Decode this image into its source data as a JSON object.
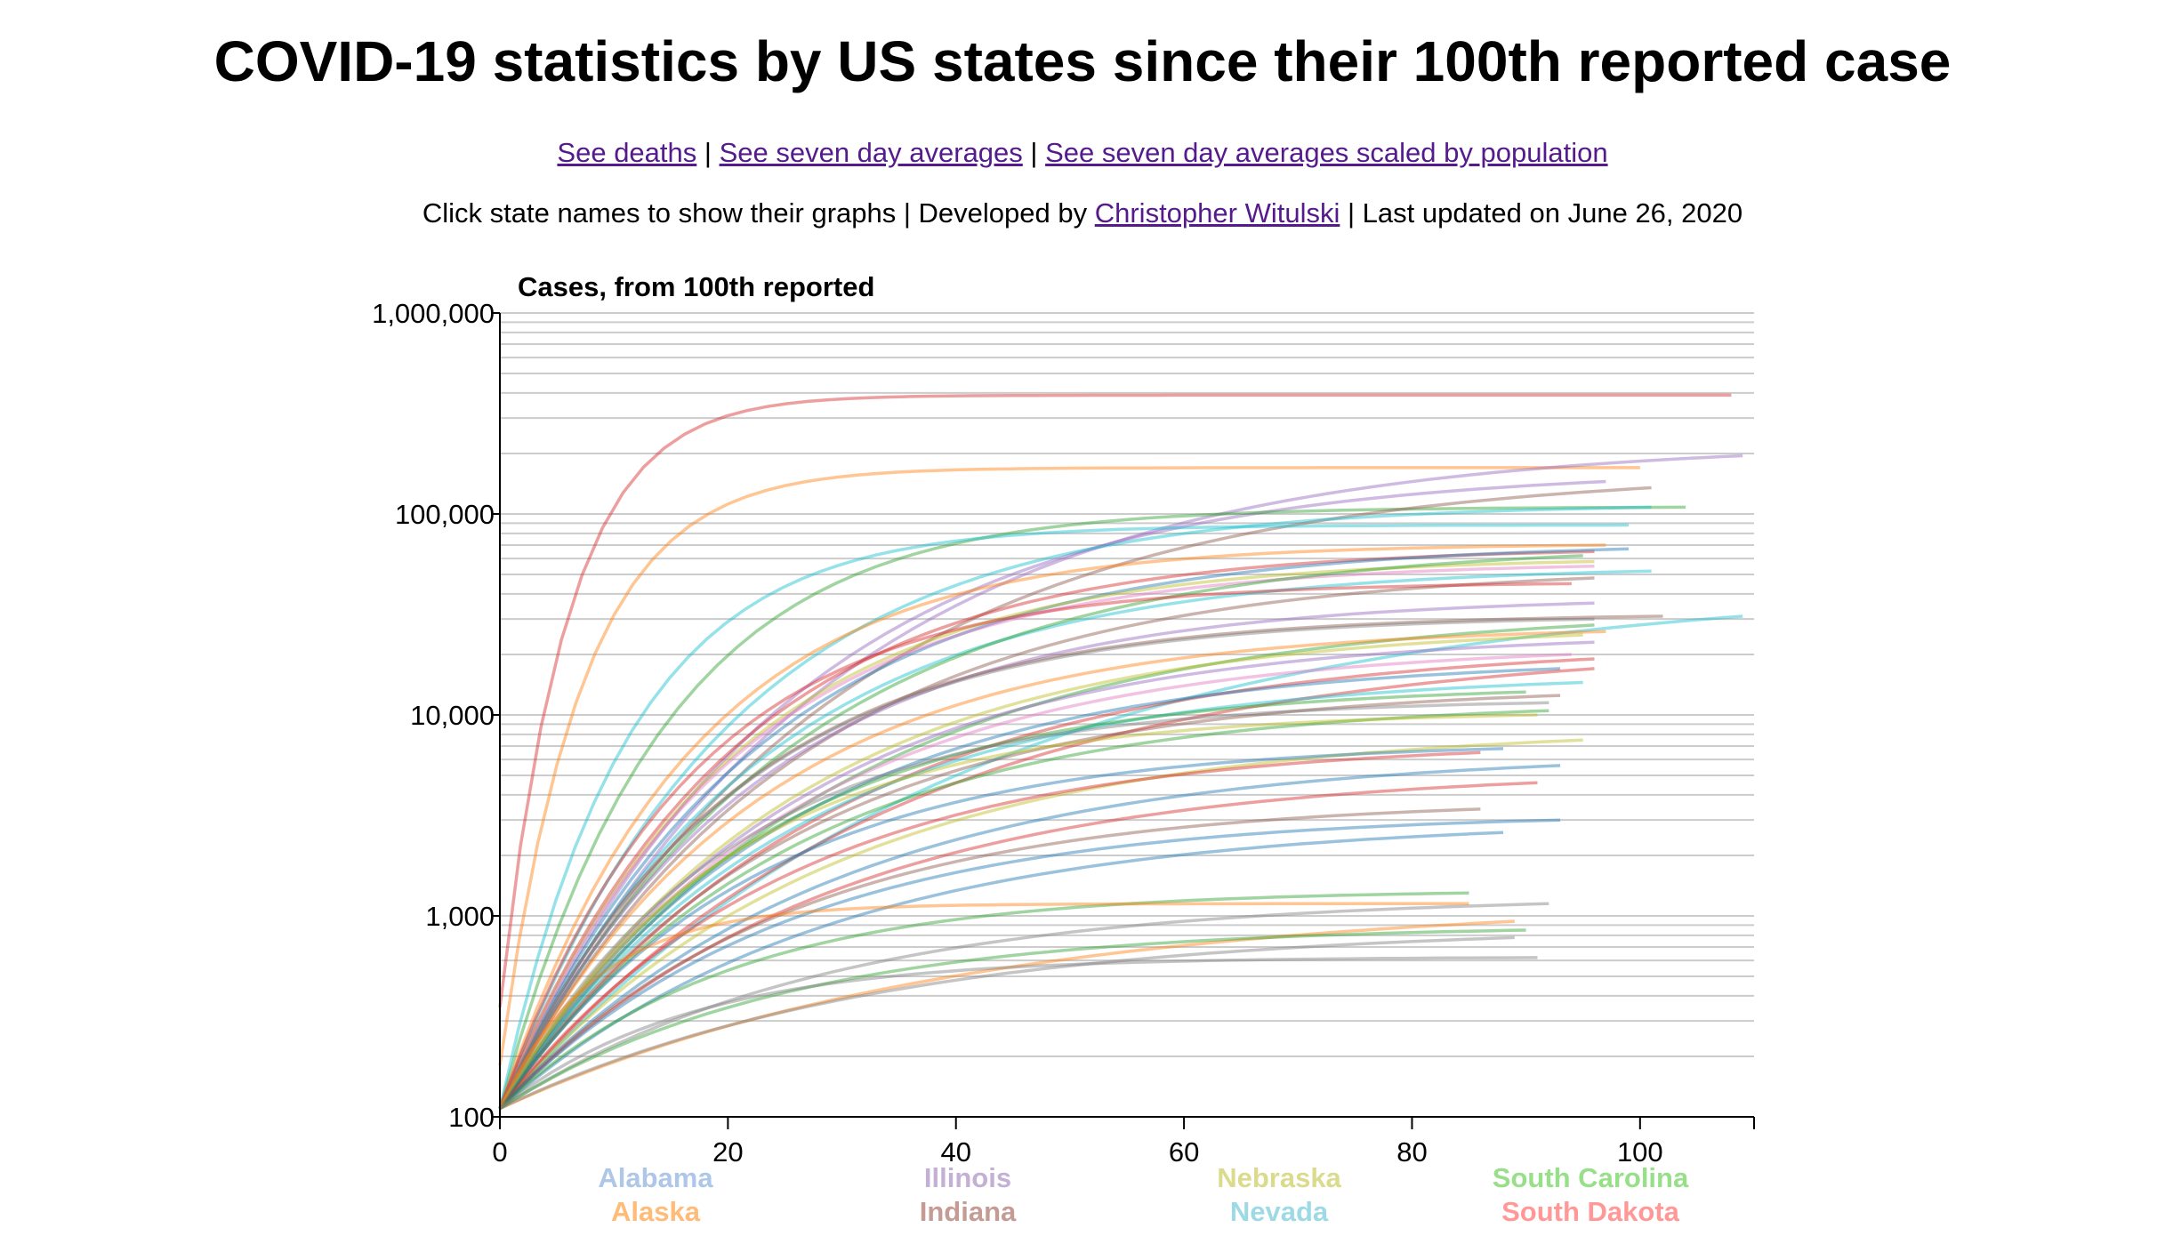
{
  "page": {
    "title": "COVID-19 statistics by US states since their 100th reported case",
    "links": [
      {
        "label": "See deaths"
      },
      {
        "label": "See seven day averages"
      },
      {
        "label": "See seven day averages scaled by population"
      }
    ],
    "separator": " | ",
    "info": {
      "prefix": "Click state names to show their graphs | Developed by ",
      "author": "Christopher Witulski",
      "suffix": " | Last updated on June 26, 2020"
    }
  },
  "chart_data": {
    "type": "line",
    "title": "Cases, from 100th reported",
    "xlabel": "",
    "ylabel": "",
    "y_scale": "log",
    "xlim": [
      0,
      110
    ],
    "ylim": [
      100,
      1000000
    ],
    "x_ticks": [
      0,
      20,
      40,
      60,
      80,
      100
    ],
    "x_tick_labels": [
      "0",
      "20",
      "40",
      "60",
      "80",
      "100"
    ],
    "y_ticks": [
      100,
      1000,
      10000,
      100000,
      1000000
    ],
    "y_tick_labels": [
      "100",
      "1,000",
      "10,000",
      "100,000",
      "1,000,000"
    ],
    "grid": "horizontal",
    "legend_placement": "bottom",
    "legend": [
      {
        "name": "Alabama",
        "color": "#aec7e8"
      },
      {
        "name": "Alaska",
        "color": "#ffbb78"
      },
      {
        "name": "Illinois",
        "color": "#c5b0d5"
      },
      {
        "name": "Indiana",
        "color": "#c49c94"
      },
      {
        "name": "Nebraska",
        "color": "#dbdb8d"
      },
      {
        "name": "Nevada",
        "color": "#9edae5"
      },
      {
        "name": "South Carolina",
        "color": "#98df8a"
      },
      {
        "name": "South Dakota",
        "color": "#ff9896"
      }
    ],
    "series": [
      {
        "end_x": 108,
        "end_y": 390000,
        "color": "#d62728",
        "k": 0.17,
        "x0": 0,
        "y0": 350
      },
      {
        "end_x": 100,
        "end_y": 170000,
        "color": "#ff7f0e",
        "k": 0.14,
        "x0": 0,
        "y0": 180
      },
      {
        "end_x": 109,
        "end_y": 195000,
        "color": "#9467bd",
        "k": 0.035,
        "x0": 0,
        "y0": 110
      },
      {
        "end_x": 97,
        "end_y": 145000,
        "color": "#9467bd",
        "k": 0.04,
        "x0": 0,
        "y0": 110
      },
      {
        "end_x": 104,
        "end_y": 108000,
        "color": "#2ca02c",
        "k": 0.07,
        "x0": 0,
        "y0": 110
      },
      {
        "end_x": 101,
        "end_y": 135000,
        "color": "#8c564b",
        "k": 0.035,
        "x0": 0,
        "y0": 110
      },
      {
        "end_x": 101,
        "end_y": 108000,
        "color": "#17becf",
        "k": 0.05,
        "x0": 0,
        "y0": 110
      },
      {
        "end_x": 99,
        "end_y": 88000,
        "color": "#17becf",
        "k": 0.09,
        "x0": 0,
        "y0": 110
      },
      {
        "end_x": 97,
        "end_y": 70000,
        "color": "#ff7f0e",
        "k": 0.06,
        "x0": 0,
        "y0": 110
      },
      {
        "end_x": 96,
        "end_y": 65000,
        "color": "#d62728",
        "k": 0.05,
        "x0": 0,
        "y0": 110
      },
      {
        "end_x": 99,
        "end_y": 67000,
        "color": "#1f77b4",
        "k": 0.045,
        "x0": 0,
        "y0": 110
      },
      {
        "end_x": 96,
        "end_y": 58000,
        "color": "#bcbd22",
        "k": 0.05,
        "x0": 0,
        "y0": 110
      },
      {
        "end_x": 101,
        "end_y": 52000,
        "color": "#17becf",
        "k": 0.045,
        "x0": 0,
        "y0": 110
      },
      {
        "end_x": 96,
        "end_y": 55000,
        "color": "#e377c2",
        "k": 0.05,
        "x0": 0,
        "y0": 110
      },
      {
        "end_x": 95,
        "end_y": 62000,
        "color": "#2ca02c",
        "k": 0.04,
        "x0": 0,
        "y0": 110
      },
      {
        "end_x": 96,
        "end_y": 48000,
        "color": "#8c564b",
        "k": 0.04,
        "x0": 0,
        "y0": 110
      },
      {
        "end_x": 94,
        "end_y": 45000,
        "color": "#d62728",
        "k": 0.06,
        "x0": 0,
        "y0": 110
      },
      {
        "end_x": 96,
        "end_y": 36000,
        "color": "#9467bd",
        "k": 0.045,
        "x0": 0,
        "y0": 110
      },
      {
        "end_x": 102,
        "end_y": 31000,
        "color": "#8c564b",
        "k": 0.05,
        "x0": 0,
        "y0": 110
      },
      {
        "end_x": 109,
        "end_y": 31000,
        "color": "#17becf",
        "k": 0.025,
        "x0": 0,
        "y0": 110
      },
      {
        "end_x": 96,
        "end_y": 30000,
        "color": "#7f7f7f",
        "k": 0.05,
        "x0": 0,
        "y0": 110
      },
      {
        "end_x": 96,
        "end_y": 28000,
        "color": "#2ca02c",
        "k": 0.035,
        "x0": 0,
        "y0": 110
      },
      {
        "end_x": 97,
        "end_y": 26000,
        "color": "#ff7f0e",
        "k": 0.045,
        "x0": 0,
        "y0": 110
      },
      {
        "end_x": 95,
        "end_y": 25000,
        "color": "#bcbd22",
        "k": 0.04,
        "x0": 0,
        "y0": 110
      },
      {
        "end_x": 96,
        "end_y": 23000,
        "color": "#9467bd",
        "k": 0.04,
        "x0": 0,
        "y0": 110
      },
      {
        "end_x": 94,
        "end_y": 20000,
        "color": "#e377c2",
        "k": 0.04,
        "x0": 0,
        "y0": 110
      },
      {
        "end_x": 96,
        "end_y": 19000,
        "color": "#d62728",
        "k": 0.035,
        "x0": 0,
        "y0": 110
      },
      {
        "end_x": 93,
        "end_y": 17000,
        "color": "#1f77b4",
        "k": 0.04,
        "x0": 0,
        "y0": 110
      },
      {
        "end_x": 96,
        "end_y": 17000,
        "color": "#d62728",
        "k": 0.03,
        "x0": 0,
        "y0": 110
      },
      {
        "end_x": 95,
        "end_y": 14500,
        "color": "#17becf",
        "k": 0.04,
        "x0": 0,
        "y0": 110
      },
      {
        "end_x": 90,
        "end_y": 13000,
        "color": "#2ca02c",
        "k": 0.045,
        "x0": 0,
        "y0": 110
      },
      {
        "end_x": 93,
        "end_y": 12500,
        "color": "#8c564b",
        "k": 0.04,
        "x0": 0,
        "y0": 110
      },
      {
        "end_x": 92,
        "end_y": 11500,
        "color": "#7f7f7f",
        "k": 0.05,
        "x0": 0,
        "y0": 110
      },
      {
        "end_x": 92,
        "end_y": 10500,
        "color": "#2ca02c",
        "k": 0.04,
        "x0": 0,
        "y0": 110
      },
      {
        "end_x": 91,
        "end_y": 10000,
        "color": "#bcbd22",
        "k": 0.05,
        "x0": 0,
        "y0": 110
      },
      {
        "end_x": 95,
        "end_y": 7500,
        "color": "#bcbd22",
        "k": 0.035,
        "x0": 0,
        "y0": 110
      },
      {
        "end_x": 88,
        "end_y": 6800,
        "color": "#1f77b4",
        "k": 0.045,
        "x0": 0,
        "y0": 110
      },
      {
        "end_x": 86,
        "end_y": 6500,
        "color": "#d62728",
        "k": 0.04,
        "x0": 0,
        "y0": 110
      },
      {
        "end_x": 93,
        "end_y": 5600,
        "color": "#1f77b4",
        "k": 0.035,
        "x0": 0,
        "y0": 110
      },
      {
        "end_x": 91,
        "end_y": 4600,
        "color": "#d62728",
        "k": 0.035,
        "x0": 0,
        "y0": 110
      },
      {
        "end_x": 86,
        "end_y": 3400,
        "color": "#8c564b",
        "k": 0.04,
        "x0": 0,
        "y0": 110
      },
      {
        "end_x": 93,
        "end_y": 3000,
        "color": "#1f77b4",
        "k": 0.04,
        "x0": 0,
        "y0": 110
      },
      {
        "end_x": 88,
        "end_y": 2600,
        "color": "#1f77b4",
        "k": 0.035,
        "x0": 0,
        "y0": 110
      },
      {
        "end_x": 85,
        "end_y": 1300,
        "color": "#2ca02c",
        "k": 0.05,
        "x0": 0,
        "y0": 110
      },
      {
        "end_x": 92,
        "end_y": 1150,
        "color": "#7f7f7f",
        "k": 0.035,
        "x0": 0,
        "y0": 110
      },
      {
        "end_x": 85,
        "end_y": 1150,
        "color": "#ff7f0e",
        "k": 0.12,
        "x0": 0,
        "y0": 110
      },
      {
        "end_x": 89,
        "end_y": 940,
        "color": "#ff7f0e",
        "k": 0.025,
        "x0": 0,
        "y0": 110
      },
      {
        "end_x": 90,
        "end_y": 850,
        "color": "#2ca02c",
        "k": 0.04,
        "x0": 0,
        "y0": 110
      },
      {
        "end_x": 89,
        "end_y": 780,
        "color": "#7f7f7f",
        "k": 0.03,
        "x0": 0,
        "y0": 110
      },
      {
        "end_x": 91,
        "end_y": 620,
        "color": "#7f7f7f",
        "k": 0.06,
        "x0": 0,
        "y0": 110
      }
    ]
  }
}
